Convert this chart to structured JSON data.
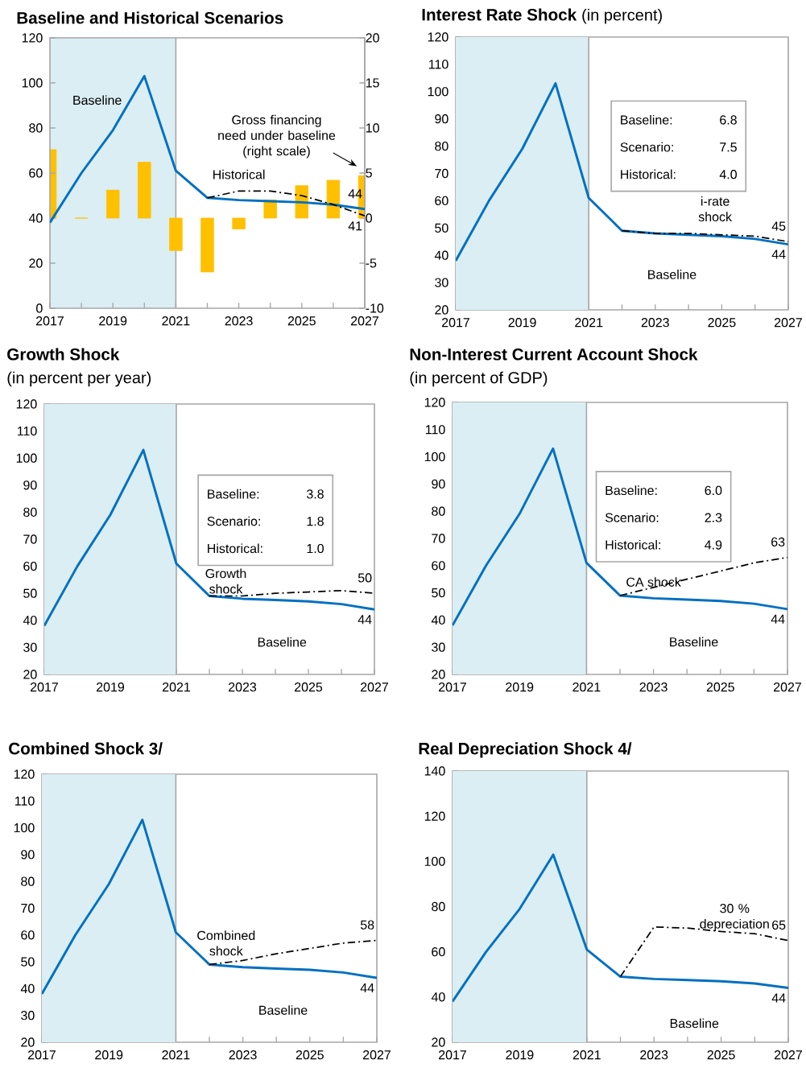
{
  "chart_data": [
    {
      "type": "line",
      "title": "Baseline and Historical Scenarios",
      "x": [
        2017,
        2018,
        2019,
        2020,
        2021,
        2022,
        2023,
        2024,
        2025,
        2026,
        2027
      ],
      "xlim": [
        2017,
        2027
      ],
      "xticks": [
        2017,
        {
          "value": 2018,
          "label": null
        },
        2019,
        {
          "value": 2020,
          "label": null
        },
        2021,
        {
          "value": 2022,
          "label": null
        },
        2023,
        {
          "value": 2024,
          "label": null
        },
        2025,
        {
          "value": 2026,
          "label": null
        },
        2027
      ],
      "ylim": [
        0,
        120
      ],
      "yticks": [
        0,
        20,
        40,
        60,
        80,
        100,
        120
      ],
      "y2lim": [
        -10,
        20
      ],
      "y2ticks": [
        -10,
        -5,
        0,
        5,
        10,
        15,
        20
      ],
      "series": [
        {
          "name": "Gross financing need under baseline (right scale)",
          "type": "bar",
          "axis": "y2",
          "color": "#ffc000",
          "values": [
            7.6,
            0,
            3.1,
            6.2,
            -3.6,
            -6.0,
            -1.2,
            2.0,
            3.6,
            4.2,
            4.7
          ]
        },
        {
          "name": "Baseline",
          "color": "#0070c0",
          "values": [
            38,
            60,
            79,
            103,
            61,
            49,
            48,
            47.5,
            47,
            46,
            44
          ],
          "value_labels": [
            null,
            null,
            null,
            null,
            null,
            null,
            null,
            null,
            null,
            null,
            "44"
          ]
        },
        {
          "name": "Historical",
          "color": "#000000",
          "line_style": "dashed",
          "x": [
            2022,
            2023,
            2024,
            2025,
            2026,
            2027
          ],
          "values": [
            49,
            52,
            52,
            50,
            46,
            41
          ],
          "value_labels": [
            null,
            null,
            null,
            null,
            null,
            "41"
          ]
        }
      ],
      "bands": [
        {
          "axis": "x",
          "from": 2017,
          "to": 2021,
          "color": "#daeef3"
        }
      ]
    },
    {
      "type": "line",
      "title": "Interest Rate Shock",
      "subtitle": "(in percent)",
      "x": [
        2017,
        2018,
        2019,
        2020,
        2021,
        2022,
        2023,
        2024,
        2025,
        2026,
        2027
      ],
      "xlim": [
        2017,
        2027
      ],
      "xticks": [
        2017,
        {
          "value": 2018,
          "label": null
        },
        2019,
        {
          "value": 2020,
          "label": null
        },
        2021,
        {
          "value": 2022,
          "label": null
        },
        2023,
        {
          "value": 2024,
          "label": null
        },
        2025,
        {
          "value": 2026,
          "label": null
        },
        2027
      ],
      "ylim": [
        20,
        120
      ],
      "yticks": [
        20,
        30,
        40,
        50,
        60,
        70,
        80,
        90,
        100,
        110,
        120
      ],
      "series": [
        {
          "name": "Baseline",
          "color": "#0070c0",
          "values": [
            38,
            60,
            79,
            103,
            61,
            49,
            48,
            47.5,
            47,
            46,
            44
          ],
          "value_labels": [
            null,
            null,
            null,
            null,
            null,
            null,
            null,
            null,
            null,
            null,
            "44"
          ]
        },
        {
          "name": "i-rate shock",
          "color": "#000000",
          "line_style": "dashed",
          "x": [
            2022,
            2023,
            2024,
            2025,
            2026,
            2027
          ],
          "values": [
            49,
            48,
            48,
            47.5,
            47,
            45
          ],
          "value_labels": [
            null,
            null,
            null,
            null,
            null,
            "45"
          ]
        }
      ],
      "annotations": [
        "Baseline:",
        "6.8",
        "Scenario:",
        "7.5",
        "Historical:",
        "4.0"
      ],
      "bands": [
        {
          "axis": "x",
          "from": 2017,
          "to": 2021,
          "color": "#daeef3"
        }
      ]
    },
    {
      "type": "line",
      "title": "Growth Shock",
      "subtitle": "(in percent per year)",
      "x": [
        2017,
        2018,
        2019,
        2020,
        2021,
        2022,
        2023,
        2024,
        2025,
        2026,
        2027
      ],
      "xlim": [
        2017,
        2027
      ],
      "xticks": [
        2017,
        {
          "value": 2018,
          "label": null
        },
        2019,
        {
          "value": 2020,
          "label": null
        },
        2021,
        {
          "value": 2022,
          "label": null
        },
        2023,
        {
          "value": 2024,
          "label": null
        },
        2025,
        {
          "value": 2026,
          "label": null
        },
        2027
      ],
      "ylim": [
        20,
        120
      ],
      "yticks": [
        20,
        30,
        40,
        50,
        60,
        70,
        80,
        90,
        100,
        110,
        120
      ],
      "series": [
        {
          "name": "Baseline",
          "color": "#0070c0",
          "values": [
            38,
            60,
            79,
            103,
            61,
            49,
            48,
            47.5,
            47,
            46,
            44
          ],
          "value_labels": [
            null,
            null,
            null,
            null,
            null,
            null,
            null,
            null,
            null,
            null,
            "44"
          ]
        },
        {
          "name": "Growth shock",
          "color": "#000000",
          "line_style": "dashed",
          "x": [
            2022,
            2023,
            2024,
            2025,
            2026,
            2027
          ],
          "values": [
            49,
            49,
            50,
            50.5,
            51,
            50
          ],
          "value_labels": [
            null,
            null,
            null,
            null,
            null,
            "50"
          ]
        }
      ],
      "annotations": [
        "Baseline:",
        "3.8",
        "Scenario:",
        "1.8",
        "Historical:",
        "1.0"
      ],
      "bands": [
        {
          "axis": "x",
          "from": 2017,
          "to": 2021,
          "color": "#daeef3"
        }
      ]
    },
    {
      "type": "line",
      "title": "Non-Interest Current Account Shock",
      "subtitle": "(in percent of GDP)",
      "x": [
        2017,
        2018,
        2019,
        2020,
        2021,
        2022,
        2023,
        2024,
        2025,
        2026,
        2027
      ],
      "xlim": [
        2017,
        2027
      ],
      "xticks": [
        2017,
        {
          "value": 2018,
          "label": null
        },
        2019,
        {
          "value": 2020,
          "label": null
        },
        2021,
        {
          "value": 2022,
          "label": null
        },
        2023,
        {
          "value": 2024,
          "label": null
        },
        2025,
        {
          "value": 2026,
          "label": null
        },
        2027
      ],
      "ylim": [
        20,
        120
      ],
      "yticks": [
        20,
        30,
        40,
        50,
        60,
        70,
        80,
        90,
        100,
        110,
        120
      ],
      "series": [
        {
          "name": "Baseline",
          "color": "#0070c0",
          "values": [
            38,
            60,
            79,
            103,
            61,
            49,
            48,
            47.5,
            47,
            46,
            44
          ],
          "value_labels": [
            null,
            null,
            null,
            null,
            null,
            null,
            null,
            null,
            null,
            null,
            "44"
          ]
        },
        {
          "name": "CA shock",
          "color": "#000000",
          "line_style": "dashed",
          "x": [
            2022,
            2023,
            2024,
            2025,
            2026,
            2027
          ],
          "values": [
            49,
            52,
            55,
            58,
            61,
            63
          ],
          "value_labels": [
            null,
            null,
            null,
            null,
            null,
            "63"
          ]
        }
      ],
      "annotations": [
        "Baseline:",
        "6.0",
        "Scenario:",
        "2.3",
        "Historical:",
        "4.9"
      ],
      "bands": [
        {
          "axis": "x",
          "from": 2017,
          "to": 2021,
          "color": "#daeef3"
        }
      ]
    },
    {
      "type": "line",
      "title": "Combined Shock 3/",
      "x": [
        2017,
        2018,
        2019,
        2020,
        2021,
        2022,
        2023,
        2024,
        2025,
        2026,
        2027
      ],
      "xlim": [
        2017,
        2027
      ],
      "xticks": [
        2017,
        {
          "value": 2018,
          "label": null
        },
        2019,
        {
          "value": 2020,
          "label": null
        },
        2021,
        {
          "value": 2022,
          "label": null
        },
        2023,
        {
          "value": 2024,
          "label": null
        },
        2025,
        {
          "value": 2026,
          "label": null
        },
        2027
      ],
      "ylim": [
        20,
        120
      ],
      "yticks": [
        20,
        30,
        40,
        50,
        60,
        70,
        80,
        90,
        100,
        110,
        120
      ],
      "series": [
        {
          "name": "Baseline",
          "color": "#0070c0",
          "values": [
            38,
            60,
            79,
            103,
            61,
            49,
            48,
            47.5,
            47,
            46,
            44
          ],
          "value_labels": [
            null,
            null,
            null,
            null,
            null,
            null,
            null,
            null,
            null,
            null,
            "44"
          ]
        },
        {
          "name": "Combined shock",
          "color": "#000000",
          "line_style": "dashed",
          "x": [
            2022,
            2023,
            2024,
            2025,
            2026,
            2027
          ],
          "values": [
            49,
            50.5,
            53,
            55,
            57,
            58
          ],
          "value_labels": [
            null,
            null,
            null,
            null,
            null,
            "58"
          ]
        }
      ],
      "bands": [
        {
          "axis": "x",
          "from": 2017,
          "to": 2021,
          "color": "#daeef3"
        }
      ]
    },
    {
      "type": "line",
      "title": "Real Depreciation Shock 4/",
      "x": [
        2017,
        2018,
        2019,
        2020,
        2021,
        2022,
        2023,
        2024,
        2025,
        2026,
        2027
      ],
      "xlim": [
        2017,
        2027
      ],
      "xticks": [
        2017,
        {
          "value": 2018,
          "label": null
        },
        2019,
        {
          "value": 2020,
          "label": null
        },
        2021,
        {
          "value": 2022,
          "label": null
        },
        2023,
        {
          "value": 2024,
          "label": null
        },
        2025,
        {
          "value": 2026,
          "label": null
        },
        2027
      ],
      "ylim": [
        20,
        140
      ],
      "yticks": [
        20,
        40,
        60,
        80,
        100,
        120,
        140
      ],
      "series": [
        {
          "name": "Baseline",
          "color": "#0070c0",
          "values": [
            38,
            60,
            79,
            103,
            61,
            49,
            48,
            47.5,
            47,
            46,
            44
          ],
          "value_labels": [
            null,
            null,
            null,
            null,
            null,
            null,
            null,
            null,
            null,
            null,
            "44"
          ]
        },
        {
          "name": "30 % depreciation",
          "color": "#000000",
          "line_style": "dashed",
          "x": [
            2022,
            2023,
            2024,
            2025,
            2026,
            2027
          ],
          "values": [
            49,
            71,
            70.5,
            69,
            68,
            65
          ],
          "value_labels": [
            null,
            null,
            null,
            null,
            null,
            "65"
          ]
        }
      ],
      "bands": [
        {
          "axis": "x",
          "from": 2017,
          "to": 2021,
          "color": "#daeef3"
        }
      ]
    }
  ]
}
